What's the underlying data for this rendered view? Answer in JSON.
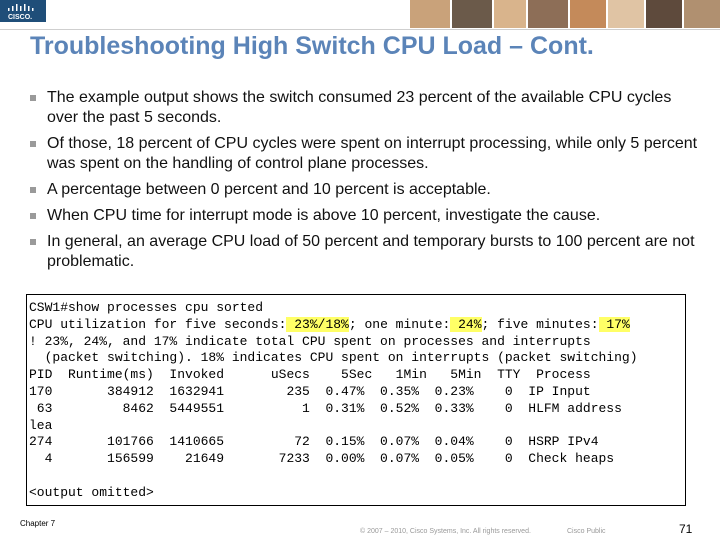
{
  "header": {
    "logo": "CISCO."
  },
  "title": "Troubleshooting High Switch CPU Load – Cont.",
  "bullets": [
    "The example output shows the switch consumed 23 percent of the available CPU cycles over the past 5 seconds.",
    "Of those, 18 percent of CPU cycles were spent on interrupt processing, while only 5 percent was spent on the handling of control plane processes.",
    "A percentage between 0 percent and 10 percent is acceptable.",
    "When CPU time for interrupt mode is above 10 percent, investigate the cause.",
    "In general, an average CPU load of 50 percent and temporary bursts to 100 percent are not problematic."
  ],
  "code": {
    "lines": [
      {
        "segments": [
          {
            "text": "CSW1#show processes cpu sorted",
            "highlight": false
          }
        ]
      },
      {
        "segments": [
          {
            "text": "CPU utilization for five seconds:",
            "highlight": false
          },
          {
            "text": " 23%/18%",
            "highlight": true
          },
          {
            "text": "; one minute:",
            "highlight": false
          },
          {
            "text": " 24%",
            "highlight": true
          },
          {
            "text": "; five minutes:",
            "highlight": false
          },
          {
            "text": " 17%",
            "highlight": true
          }
        ]
      },
      {
        "segments": [
          {
            "text": "! 23%, 24%, and 17% indicate total CPU spent on processes and interrupts",
            "highlight": false
          }
        ]
      },
      {
        "segments": [
          {
            "text": "  (packet switching). 18% indicates CPU spent on interrupts (packet switching)",
            "highlight": false
          }
        ]
      },
      {
        "segments": [
          {
            "text": "PID  Runtime(ms)  Invoked      uSecs    5Sec   1Min   5Min  TTY  Process",
            "highlight": false
          }
        ]
      },
      {
        "segments": [
          {
            "text": "170       384912  1632941        235  0.47%  0.35%  0.23%    0  IP Input",
            "highlight": false
          }
        ]
      },
      {
        "segments": [
          {
            "text": " 63         8462  5449551          1  0.31%  0.52%  0.33%    0  HLFM address",
            "highlight": false
          }
        ]
      },
      {
        "segments": [
          {
            "text": "lea",
            "highlight": false
          }
        ]
      },
      {
        "segments": [
          {
            "text": "274       101766  1410665         72  0.15%  0.07%  0.04%    0  HSRP IPv4",
            "highlight": false
          }
        ]
      },
      {
        "segments": [
          {
            "text": "  4       156599    21649       7233  0.00%  0.07%  0.05%    0  Check heaps",
            "highlight": false
          }
        ]
      },
      {
        "segments": [
          {
            "text": "<output omitted>",
            "highlight": false
          }
        ]
      }
    ]
  },
  "footer": {
    "chapter": "Chapter 7",
    "copyright": "© 2007 – 2010, Cisco Systems, Inc. All rights reserved.",
    "classification": "Cisco Public",
    "page": "71"
  }
}
